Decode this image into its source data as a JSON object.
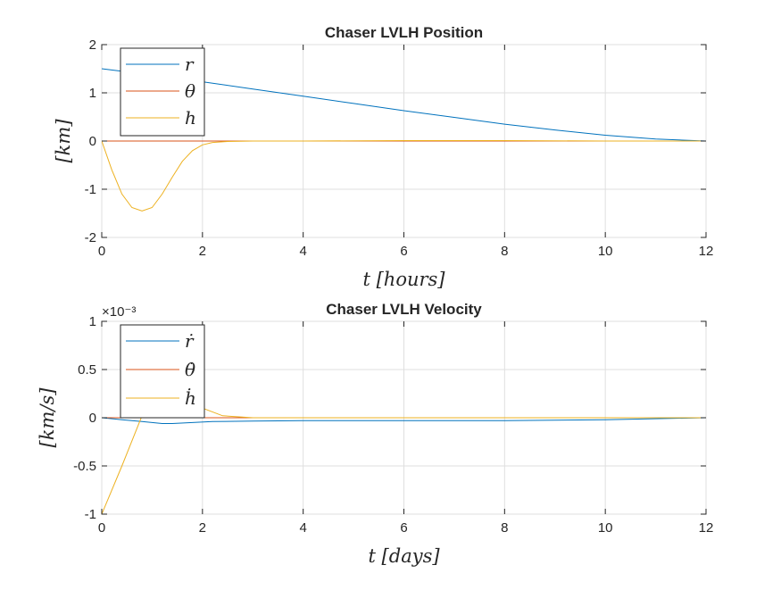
{
  "colors": {
    "s1": "#0072BD",
    "s2": "#D95319",
    "s3": "#EDB120",
    "axis": "#262626",
    "grid": "#dfdfdf"
  },
  "chart_data": [
    {
      "type": "line",
      "title": "Chaser LVLH Position",
      "xlabel": "t [hours]",
      "ylabel": "[km]",
      "xlim": [
        0,
        12
      ],
      "ylim": [
        -2,
        2
      ],
      "xticks": [
        0,
        2,
        4,
        6,
        8,
        10,
        12
      ],
      "yticks": [
        -2,
        -1,
        0,
        1,
        2
      ],
      "xtick_labels": [
        "0",
        "2",
        "4",
        "6",
        "8",
        "10",
        "12"
      ],
      "ytick_labels": [
        "-2",
        "-1",
        "0",
        "1",
        "2"
      ],
      "exponent_label": "",
      "grid": true,
      "legend_position": "top-left",
      "series": [
        {
          "name": "r",
          "color": "#0072BD",
          "x": [
            0,
            1,
            2,
            3,
            4,
            5,
            6,
            7,
            8,
            9,
            10,
            11,
            12
          ],
          "y": [
            1.5,
            1.37,
            1.23,
            1.08,
            0.93,
            0.78,
            0.63,
            0.49,
            0.35,
            0.23,
            0.12,
            0.04,
            0
          ]
        },
        {
          "name": "θ",
          "color": "#D95319",
          "x": [
            0,
            2,
            4,
            6,
            8,
            10,
            12
          ],
          "y": [
            0,
            0,
            0,
            0,
            0,
            0,
            0
          ]
        },
        {
          "name": "h",
          "color": "#EDB120",
          "x": [
            0,
            0.2,
            0.4,
            0.6,
            0.8,
            1.0,
            1.2,
            1.4,
            1.6,
            1.8,
            2.0,
            2.2,
            2.5,
            3.0,
            4,
            6,
            8,
            10,
            12
          ],
          "y": [
            0,
            -0.6,
            -1.1,
            -1.38,
            -1.45,
            -1.38,
            -1.1,
            -0.75,
            -0.42,
            -0.2,
            -0.08,
            -0.03,
            -0.01,
            0,
            0,
            0.01,
            0.01,
            0,
            0
          ]
        }
      ]
    },
    {
      "type": "line",
      "title": "Chaser LVLH Velocity",
      "xlabel": "t [days]",
      "ylabel": "[km/s]",
      "xlim": [
        0,
        12
      ],
      "ylim": [
        -1,
        1
      ],
      "xticks": [
        0,
        2,
        4,
        6,
        8,
        10,
        12
      ],
      "yticks": [
        -1,
        -0.5,
        0,
        0.5,
        1
      ],
      "xtick_labels": [
        "0",
        "2",
        "4",
        "6",
        "8",
        "10",
        "12"
      ],
      "ytick_labels": [
        "-1",
        "-0.5",
        "0",
        "0.5",
        "1"
      ],
      "exponent_label": "×10⁻³",
      "grid": true,
      "legend_position": "top-left",
      "series": [
        {
          "name": "ṙ",
          "color": "#0072BD",
          "x": [
            0,
            0.4,
            0.8,
            1.2,
            1.4,
            1.8,
            2.2,
            3,
            4,
            6,
            8,
            10,
            12
          ],
          "y": [
            0,
            -0.02,
            -0.04,
            -0.06,
            -0.06,
            -0.05,
            -0.04,
            -0.035,
            -0.03,
            -0.03,
            -0.03,
            -0.02,
            0
          ]
        },
        {
          "name": "θ̇",
          "color": "#D95319",
          "x": [
            0,
            2,
            4,
            6,
            8,
            10,
            12
          ],
          "y": [
            0,
            0,
            0,
            0,
            0,
            0,
            0
          ]
        },
        {
          "name": "ḣ",
          "color": "#EDB120",
          "x": [
            0,
            0.4,
            0.8,
            1.2,
            1.6,
            2.0,
            2.4,
            3.0,
            4,
            6,
            8,
            10,
            12
          ],
          "y": [
            -1,
            -0.5,
            0.02,
            0.25,
            0.27,
            0.1,
            0.02,
            0,
            0,
            0,
            0,
            0,
            0
          ]
        }
      ]
    }
  ]
}
